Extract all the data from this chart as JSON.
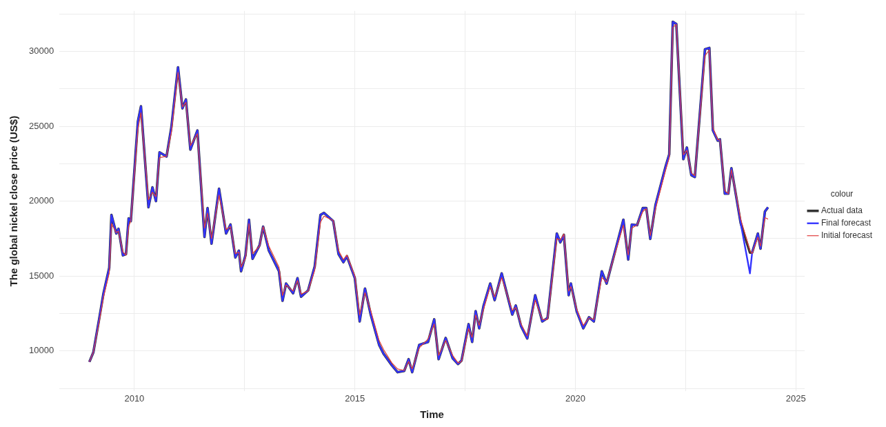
{
  "chart_data": {
    "type": "line",
    "xlabel": "Time",
    "ylabel": "The global nickel close price (US$)",
    "legend_title": "colour",
    "legend": "right",
    "grid": true,
    "marker": "none",
    "line_style": "solid",
    "xlim": [
      2008.3,
      2025.2
    ],
    "xticks": [
      {
        "value": 2010,
        "label": "2010"
      },
      {
        "value": 2012.5,
        "label": null
      },
      {
        "value": 2015,
        "label": "2015"
      },
      {
        "value": 2017.5,
        "label": null
      },
      {
        "value": 2020,
        "label": "2020"
      },
      {
        "value": 2022.5,
        "label": null
      },
      {
        "value": 2025,
        "label": "2025"
      }
    ],
    "ylim": [
      7300,
      32700
    ],
    "yticks": [
      {
        "value": 7500,
        "label": null
      },
      {
        "value": 10000,
        "label": "10000"
      },
      {
        "value": 12500,
        "label": null
      },
      {
        "value": 15000,
        "label": "15000"
      },
      {
        "value": 17500,
        "label": null
      },
      {
        "value": 20000,
        "label": "20000"
      },
      {
        "value": 22500,
        "label": null
      },
      {
        "value": 25000,
        "label": "25000"
      },
      {
        "value": 27500,
        "label": null
      },
      {
        "value": 30000,
        "label": "30000"
      },
      {
        "value": 32500,
        "label": null
      }
    ],
    "x": [
      2008.98,
      2009.07,
      2009.2,
      2009.3,
      2009.43,
      2009.48,
      2009.59,
      2009.64,
      2009.74,
      2009.81,
      2009.87,
      2009.92,
      2010.08,
      2010.15,
      2010.32,
      2010.41,
      2010.49,
      2010.57,
      2010.73,
      2010.84,
      2010.99,
      2011.09,
      2011.17,
      2011.27,
      2011.43,
      2011.59,
      2011.66,
      2011.75,
      2011.92,
      2012.08,
      2012.18,
      2012.29,
      2012.37,
      2012.42,
      2012.52,
      2012.6,
      2012.68,
      2012.84,
      2012.92,
      2013.05,
      2013.28,
      2013.36,
      2013.44,
      2013.6,
      2013.7,
      2013.78,
      2013.94,
      2014.09,
      2014.22,
      2014.3,
      2014.51,
      2014.63,
      2014.74,
      2014.82,
      2015.0,
      2015.11,
      2015.23,
      2015.36,
      2015.55,
      2015.65,
      2015.84,
      2015.97,
      2016.12,
      2016.22,
      2016.3,
      2016.46,
      2016.66,
      2016.8,
      2016.9,
      2017.06,
      2017.22,
      2017.34,
      2017.42,
      2017.58,
      2017.66,
      2017.74,
      2017.82,
      2017.92,
      2018.07,
      2018.17,
      2018.33,
      2018.57,
      2018.65,
      2018.77,
      2018.91,
      2019.09,
      2019.25,
      2019.37,
      2019.58,
      2019.66,
      2019.74,
      2019.85,
      2019.9,
      2020.03,
      2020.18,
      2020.31,
      2020.42,
      2020.6,
      2020.71,
      2021.09,
      2021.2,
      2021.28,
      2021.4,
      2021.53,
      2021.61,
      2021.7,
      2021.82,
      2022.05,
      2022.13,
      2022.21,
      2022.29,
      2022.45,
      2022.53,
      2022.63,
      2022.71,
      2022.94,
      2023.04,
      2023.12,
      2023.23,
      2023.28,
      2023.39,
      2023.47,
      2023.54,
      2023.75,
      2023.96,
      2024.01,
      2024.14,
      2024.2,
      2024.3,
      2024.37
    ],
    "series": [
      {
        "name": "Actual data",
        "color": "#333333",
        "values": [
          9270,
          9910,
          12110,
          13850,
          15550,
          19080,
          17840,
          18160,
          16380,
          16470,
          18850,
          18670,
          25320,
          26330,
          19590,
          20920,
          20000,
          23260,
          22980,
          24950,
          28940,
          26190,
          26790,
          23440,
          24720,
          17610,
          19540,
          17160,
          20830,
          17840,
          18440,
          16240,
          16700,
          15320,
          16380,
          18760,
          16150,
          17060,
          18300,
          16700,
          15320,
          13350,
          14500,
          13850,
          14860,
          13620,
          14040,
          15640,
          19080,
          19220,
          18670,
          16470,
          15920,
          16330,
          14860,
          11970,
          14170,
          12430,
          10410,
          9820,
          9040,
          8580,
          8670,
          9450,
          8580,
          10410,
          10600,
          12110,
          9450,
          10870,
          9500,
          9130,
          9360,
          11790,
          10600,
          12660,
          11510,
          13030,
          14500,
          13390,
          15180,
          12430,
          13030,
          11650,
          10830,
          13720,
          11970,
          12200,
          17840,
          17250,
          17750,
          13720,
          14500,
          12660,
          11510,
          12250,
          11970,
          15320,
          14500,
          18760,
          16100,
          18440,
          18390,
          19540,
          19540,
          17480,
          19770,
          22340,
          23120,
          31970,
          31830,
          22800,
          23580,
          21740,
          21610,
          30140,
          30230,
          24720,
          24040,
          24130,
          20500,
          20500,
          22200,
          18530,
          16560,
          16560,
          17840,
          16830,
          19310,
          19590
        ]
      },
      {
        "name": "Final forecast",
        "color": "#3333ff",
        "values": [
          9270,
          9910,
          12110,
          13850,
          15550,
          19080,
          17840,
          18160,
          16380,
          16470,
          18850,
          18670,
          25320,
          26330,
          19590,
          20920,
          20000,
          23260,
          22980,
          24950,
          28940,
          26190,
          26790,
          23440,
          24720,
          17610,
          19540,
          17160,
          20830,
          17840,
          18440,
          16240,
          16700,
          15320,
          16380,
          18760,
          16150,
          17060,
          18300,
          16700,
          15320,
          13350,
          14500,
          13850,
          14860,
          13620,
          14040,
          15640,
          19080,
          19220,
          18670,
          16470,
          15920,
          16330,
          14860,
          11970,
          14170,
          12430,
          10410,
          9820,
          9040,
          8580,
          8670,
          9450,
          8580,
          10410,
          10600,
          12110,
          9450,
          10870,
          9500,
          9130,
          9360,
          11790,
          10600,
          12660,
          11510,
          13030,
          14500,
          13390,
          15180,
          12430,
          13030,
          11650,
          10830,
          13720,
          11970,
          12200,
          17840,
          17250,
          17750,
          13720,
          14500,
          12660,
          11510,
          12250,
          11970,
          15320,
          14500,
          18760,
          16100,
          18440,
          18390,
          19540,
          19540,
          17480,
          19770,
          22340,
          23120,
          31970,
          31830,
          22800,
          23580,
          21740,
          21610,
          30140,
          30230,
          24720,
          24040,
          24130,
          20500,
          20500,
          22200,
          18530,
          15180,
          16560,
          17840,
          16830,
          19310,
          19590
        ]
      },
      {
        "name": "Initial forecast",
        "color": "#e03c3c",
        "values": [
          9270,
          9910,
          11900,
          13600,
          15200,
          18500,
          17900,
          18000,
          16600,
          16400,
          18300,
          18700,
          24800,
          25900,
          20100,
          20600,
          20300,
          22900,
          23000,
          24600,
          28600,
          26300,
          26600,
          23700,
          24500,
          18200,
          19200,
          17500,
          20400,
          18100,
          18300,
          16500,
          16600,
          15600,
          16200,
          18500,
          16500,
          17000,
          18300,
          17000,
          15600,
          13700,
          14400,
          14000,
          14700,
          13800,
          14000,
          15400,
          18600,
          19000,
          18700,
          16700,
          16100,
          16400,
          15000,
          12400,
          13900,
          12700,
          10700,
          10100,
          9200,
          8800,
          8700,
          9300,
          8800,
          10200,
          10800,
          11800,
          9700,
          10700,
          9700,
          9200,
          9300,
          11500,
          10900,
          12400,
          11700,
          12800,
          14300,
          13600,
          14900,
          12700,
          12900,
          11800,
          11000,
          13400,
          12100,
          12100,
          17500,
          17400,
          17800,
          14000,
          14300,
          12800,
          11700,
          12200,
          12100,
          14900,
          14600,
          18400,
          16400,
          18200,
          18400,
          19300,
          19500,
          17700,
          19500,
          22100,
          22900,
          31600,
          31800,
          23100,
          23400,
          21900,
          21700,
          29700,
          30100,
          24900,
          24100,
          24100,
          20700,
          20500,
          22100,
          18800,
          16700,
          16500,
          17600,
          17000,
          18900,
          18800
        ]
      }
    ]
  }
}
